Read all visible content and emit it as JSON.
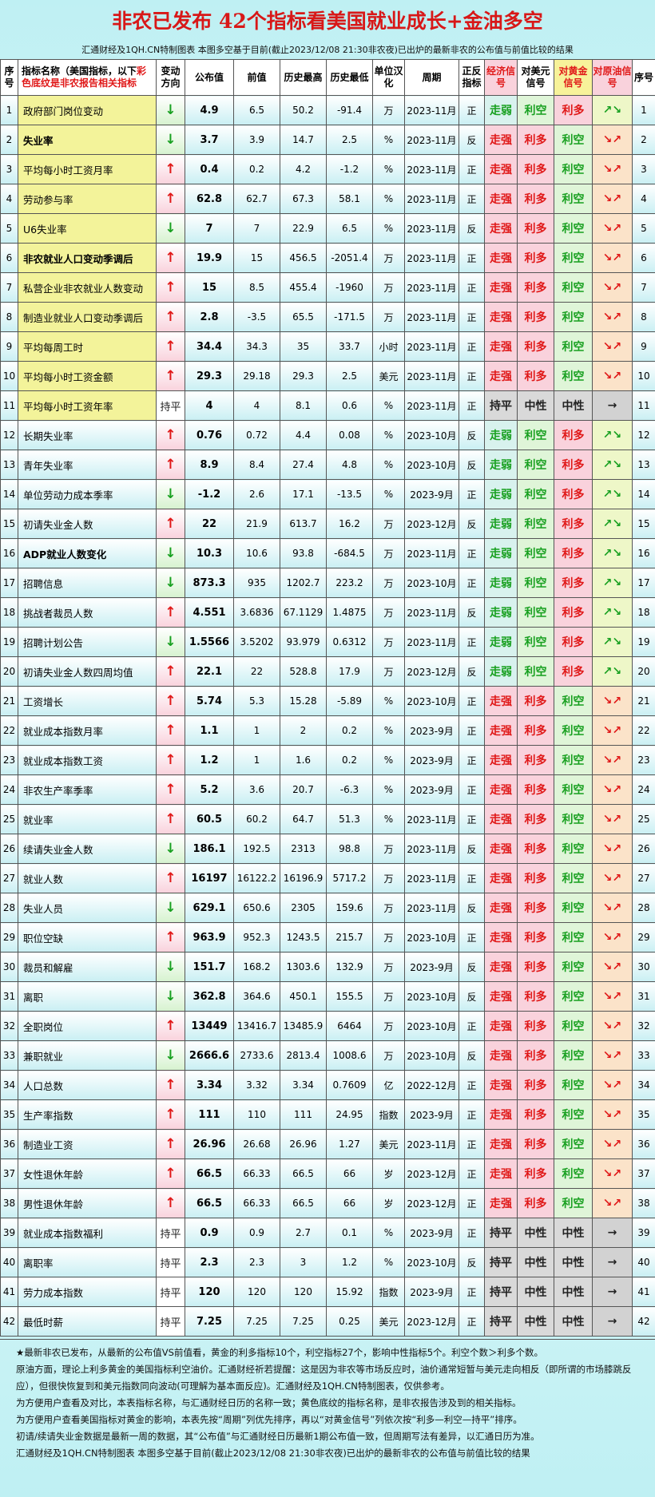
{
  "header": {
    "title": "非农已发布 42个指标看美国就业成长+金油多空",
    "subtitle": "汇通财经及1QH.CN特制图表 本图多空基于目前(截止2023/12/08 21:30非农夜)已出炉的最新非农的公布值与前值比较的结果"
  },
  "table": {
    "columns": [
      "序号",
      [
        "指标名称（美国指标，以下",
        "彩色底纹是非农报告相关指标"
      ],
      "变动方向",
      "公布值",
      "前值",
      "历史最高",
      "历史最低",
      "单位汉化",
      "周期",
      "正反指标",
      "经济信号",
      "对美元信号",
      "对黄金信号",
      "对原油信号",
      "序号"
    ],
    "highlight_color": "#f3f39a",
    "cell_styles": {
      "↓": {
        "color": "#18a020",
        "bg": "#d6f2cf"
      },
      "↑": {
        "color": "#e01818",
        "bg": "#f9d2dc"
      },
      "持平": {
        "color": "#222222",
        "bg": "#d9d9d9"
      },
      "走弱": {
        "color": "#18a020",
        "bg": "#d8f2ee"
      },
      "走强": {
        "color": "#e01818",
        "bg": "#f9d2dc"
      },
      "利空": {
        "color": "#18a020",
        "bg": "#dff5d8"
      },
      "利多": {
        "color": "#e01818",
        "bg": "#f9d2dc"
      },
      "中性": {
        "color": "#222222",
        "bg": "#d9d9d9"
      },
      "↗↘": {
        "color": "#18a020",
        "bg": "#eef7c8"
      },
      "↘↗": {
        "color": "#e01818",
        "bg": "#fbe3c9"
      },
      "→": {
        "color": "#222222",
        "bg": "#d2d2d2"
      }
    },
    "rows": [
      {
        "cells": [
          1,
          "政府部门岗位变动",
          "↓",
          4.9,
          6.5,
          50.2,
          -91.4,
          "万",
          "2023-11月",
          "正",
          "走弱",
          "利空",
          "利多",
          "↗↘",
          1
        ],
        "highlight": true
      },
      {
        "cells": [
          2,
          "失业率",
          "↓",
          3.7,
          3.9,
          14.7,
          2.5,
          "%",
          "2023-11月",
          "反",
          "走强",
          "利多",
          "利空",
          "↘↗",
          2
        ],
        "highlight": true,
        "bold": true
      },
      {
        "cells": [
          3,
          "平均每小时工资月率",
          "↑",
          0.4,
          0.2,
          4.2,
          -1.2,
          "%",
          "2023-11月",
          "正",
          "走强",
          "利多",
          "利空",
          "↘↗",
          3
        ],
        "highlight": true
      },
      {
        "cells": [
          4,
          "劳动参与率",
          "↑",
          62.8,
          62.7,
          67.3,
          58.1,
          "%",
          "2023-11月",
          "正",
          "走强",
          "利多",
          "利空",
          "↘↗",
          4
        ],
        "highlight": true
      },
      {
        "cells": [
          5,
          "U6失业率",
          "↓",
          7,
          7,
          22.9,
          6.5,
          "%",
          "2023-11月",
          "反",
          "走强",
          "利多",
          "利空",
          "↘↗",
          5
        ],
        "highlight": true
      },
      {
        "cells": [
          6,
          "非农就业人口变动季调后",
          "↑",
          19.9,
          15,
          456.5,
          -2051.4,
          "万",
          "2023-11月",
          "正",
          "走强",
          "利多",
          "利空",
          "↘↗",
          6
        ],
        "highlight": true,
        "bold": true
      },
      {
        "cells": [
          7,
          "私营企业非农就业人数变动",
          "↑",
          15,
          8.5,
          455.4,
          -1960,
          "万",
          "2023-11月",
          "正",
          "走强",
          "利多",
          "利空",
          "↘↗",
          7
        ],
        "highlight": true
      },
      {
        "cells": [
          8,
          "制造业就业人口变动季调后",
          "↑",
          2.8,
          -3.5,
          65.5,
          -171.5,
          "万",
          "2023-11月",
          "正",
          "走强",
          "利多",
          "利空",
          "↘↗",
          8
        ],
        "highlight": true
      },
      {
        "cells": [
          9,
          "平均每周工时",
          "↑",
          34.4,
          34.3,
          35,
          33.7,
          "小时",
          "2023-11月",
          "正",
          "走强",
          "利多",
          "利空",
          "↘↗",
          9
        ],
        "highlight": true
      },
      {
        "cells": [
          10,
          "平均每小时工资金额",
          "↑",
          29.3,
          29.18,
          29.3,
          2.5,
          "美元",
          "2023-11月",
          "正",
          "走强",
          "利多",
          "利空",
          "↘↗",
          10
        ],
        "highlight": true
      },
      {
        "cells": [
          11,
          "平均每小时工资年率",
          "持平",
          4,
          4,
          8.1,
          0.6,
          "%",
          "2023-11月",
          "正",
          "持平",
          "中性",
          "中性",
          "→",
          11
        ],
        "highlight": true
      },
      {
        "cells": [
          12,
          "长期失业率",
          "↑",
          0.76,
          0.72,
          4.4,
          0.08,
          "%",
          "2023-10月",
          "反",
          "走弱",
          "利空",
          "利多",
          "↗↘",
          12
        ]
      },
      {
        "cells": [
          13,
          "青年失业率",
          "↑",
          8.9,
          8.4,
          27.4,
          4.8,
          "%",
          "2023-10月",
          "反",
          "走弱",
          "利空",
          "利多",
          "↗↘",
          13
        ]
      },
      {
        "cells": [
          14,
          "单位劳动力成本季率",
          "↓",
          -1.2,
          2.6,
          17.1,
          -13.5,
          "%",
          "2023-9月",
          "正",
          "走弱",
          "利空",
          "利多",
          "↗↘",
          14
        ]
      },
      {
        "cells": [
          15,
          "初请失业金人数",
          "↑",
          22,
          21.9,
          613.7,
          16.2,
          "万",
          "2023-12月",
          "反",
          "走弱",
          "利空",
          "利多",
          "↗↘",
          15
        ]
      },
      {
        "cells": [
          16,
          "ADP就业人数变化",
          "↓",
          10.3,
          10.6,
          93.8,
          -684.5,
          "万",
          "2023-11月",
          "正",
          "走弱",
          "利空",
          "利多",
          "↗↘",
          16
        ],
        "bold": true
      },
      {
        "cells": [
          17,
          "招聘信息",
          "↓",
          873.3,
          935,
          1202.7,
          223.2,
          "万",
          "2023-10月",
          "正",
          "走弱",
          "利空",
          "利多",
          "↗↘",
          17
        ]
      },
      {
        "cells": [
          18,
          "挑战者裁员人数",
          "↑",
          4.551,
          3.6836,
          67.1129,
          1.4875,
          "万",
          "2023-11月",
          "反",
          "走弱",
          "利空",
          "利多",
          "↗↘",
          18
        ]
      },
      {
        "cells": [
          19,
          "招聘计划公告",
          "↓",
          1.5566,
          3.5202,
          93.979,
          0.6312,
          "万",
          "2023-11月",
          "正",
          "走弱",
          "利空",
          "利多",
          "↗↘",
          19
        ]
      },
      {
        "cells": [
          20,
          "初请失业金人数四周均值",
          "↑",
          22.1,
          22,
          528.8,
          17.9,
          "万",
          "2023-12月",
          "反",
          "走弱",
          "利空",
          "利多",
          "↗↘",
          20
        ]
      },
      {
        "cells": [
          21,
          "工资增长",
          "↑",
          5.74,
          5.3,
          15.28,
          -5.89,
          "%",
          "2023-10月",
          "正",
          "走强",
          "利多",
          "利空",
          "↘↗",
          21
        ]
      },
      {
        "cells": [
          22,
          "就业成本指数月率",
          "↑",
          1.1,
          1,
          2,
          0.2,
          "%",
          "2023-9月",
          "正",
          "走强",
          "利多",
          "利空",
          "↘↗",
          22
        ]
      },
      {
        "cells": [
          23,
          "就业成本指数工资",
          "↑",
          1.2,
          1,
          1.6,
          0.2,
          "%",
          "2023-9月",
          "正",
          "走强",
          "利多",
          "利空",
          "↘↗",
          23
        ]
      },
      {
        "cells": [
          24,
          "非农生产率季率",
          "↑",
          5.2,
          3.6,
          20.7,
          -6.3,
          "%",
          "2023-9月",
          "正",
          "走强",
          "利多",
          "利空",
          "↘↗",
          24
        ]
      },
      {
        "cells": [
          25,
          "就业率",
          "↑",
          60.5,
          60.2,
          64.7,
          51.3,
          "%",
          "2023-11月",
          "正",
          "走强",
          "利多",
          "利空",
          "↘↗",
          25
        ]
      },
      {
        "cells": [
          26,
          "续请失业金人数",
          "↓",
          186.1,
          192.5,
          2313,
          98.8,
          "万",
          "2023-11月",
          "反",
          "走强",
          "利多",
          "利空",
          "↘↗",
          26
        ]
      },
      {
        "cells": [
          27,
          "就业人数",
          "↑",
          16197,
          16122.2,
          16196.9,
          5717.2,
          "万",
          "2023-11月",
          "正",
          "走强",
          "利多",
          "利空",
          "↘↗",
          27
        ]
      },
      {
        "cells": [
          28,
          "失业人员",
          "↓",
          629.1,
          650.6,
          2305,
          159.6,
          "万",
          "2023-11月",
          "反",
          "走强",
          "利多",
          "利空",
          "↘↗",
          28
        ]
      },
      {
        "cells": [
          29,
          "职位空缺",
          "↑",
          963.9,
          952.3,
          1243.5,
          215.7,
          "万",
          "2023-10月",
          "正",
          "走强",
          "利多",
          "利空",
          "↘↗",
          29
        ]
      },
      {
        "cells": [
          30,
          "裁员和解雇",
          "↓",
          151.7,
          168.2,
          1303.6,
          132.9,
          "万",
          "2023-9月",
          "反",
          "走强",
          "利多",
          "利空",
          "↘↗",
          30
        ]
      },
      {
        "cells": [
          31,
          "离职",
          "↓",
          362.8,
          364.6,
          450.1,
          155.5,
          "万",
          "2023-10月",
          "反",
          "走强",
          "利多",
          "利空",
          "↘↗",
          31
        ]
      },
      {
        "cells": [
          32,
          "全职岗位",
          "↑",
          13449,
          13416.7,
          13485.9,
          6464,
          "万",
          "2023-10月",
          "正",
          "走强",
          "利多",
          "利空",
          "↘↗",
          32
        ]
      },
      {
        "cells": [
          33,
          "兼职就业",
          "↓",
          2666.6,
          2733.6,
          2813.4,
          1008.6,
          "万",
          "2023-10月",
          "反",
          "走强",
          "利多",
          "利空",
          "↘↗",
          33
        ]
      },
      {
        "cells": [
          34,
          "人口总数",
          "↑",
          3.34,
          3.32,
          3.34,
          0.7609,
          "亿",
          "2022-12月",
          "正",
          "走强",
          "利多",
          "利空",
          "↘↗",
          34
        ]
      },
      {
        "cells": [
          35,
          "生产率指数",
          "↑",
          111,
          110,
          111,
          24.95,
          "指数",
          "2023-9月",
          "正",
          "走强",
          "利多",
          "利空",
          "↘↗",
          35
        ]
      },
      {
        "cells": [
          36,
          "制造业工资",
          "↑",
          26.96,
          26.68,
          26.96,
          1.27,
          "美元",
          "2023-11月",
          "正",
          "走强",
          "利多",
          "利空",
          "↘↗",
          36
        ]
      },
      {
        "cells": [
          37,
          "女性退休年龄",
          "↑",
          66.5,
          66.33,
          66.5,
          66,
          "岁",
          "2023-12月",
          "正",
          "走强",
          "利多",
          "利空",
          "↘↗",
          37
        ]
      },
      {
        "cells": [
          38,
          "男性退休年龄",
          "↑",
          66.5,
          66.33,
          66.5,
          66,
          "岁",
          "2023-12月",
          "正",
          "走强",
          "利多",
          "利空",
          "↘↗",
          38
        ]
      },
      {
        "cells": [
          39,
          "就业成本指数福利",
          "持平",
          0.9,
          0.9,
          2.7,
          0.1,
          "%",
          "2023-9月",
          "正",
          "持平",
          "中性",
          "中性",
          "→",
          39
        ]
      },
      {
        "cells": [
          40,
          "离职率",
          "持平",
          2.3,
          2.3,
          3,
          1.2,
          "%",
          "2023-10月",
          "反",
          "持平",
          "中性",
          "中性",
          "→",
          40
        ]
      },
      {
        "cells": [
          41,
          "劳力成本指数",
          "持平",
          120,
          120,
          120,
          15.92,
          "指数",
          "2023-9月",
          "正",
          "持平",
          "中性",
          "中性",
          "→",
          41
        ]
      },
      {
        "cells": [
          42,
          "最低时薪",
          "持平",
          7.25,
          7.25,
          7.25,
          0.25,
          "美元",
          "2023-12月",
          "正",
          "持平",
          "中性",
          "中性",
          "→",
          42
        ]
      }
    ]
  },
  "notes": [
    "★最新非农已发布，从最新的公布值VS前值看，黄金的利多指标10个，利空指标27个，影响中性指标5个。利空个数＞利多个数。",
    "原油方面，理论上利多黄金的美国指标利空油价。汇通财经祈若提醒：这是因为非农等市场反应时，油价通常短暂与美元走向相反（即所谓的市场膝跳反应），但很快恢复到和美元指数同向波动(可理解为基本面反应)。汇通财经及1QH.CN特制图表，仅供参考。",
    "为方便用户查看及对比，本表指标名称，与汇通财经日历的名称一致；黄色底纹的指标名称，是非农报告涉及到的相关指标。",
    "为方便用户查看美国指标对黄金的影响，本表先按“周期”列优先排序，再以“对黄金信号”列依次按“利多—利空—持平”排序。",
    "初请/续请失业金数据是最新一周的数据，其“公布值”与汇通财经日历最新1期公布值一致，但周期写法有差异，以汇通日历为准。",
    "汇通财经及1QH.CN特制图表 本图多空基于目前(截止2023/12/08 21:30非农夜)已出炉的最新非农的公布值与前值比较的结果"
  ]
}
